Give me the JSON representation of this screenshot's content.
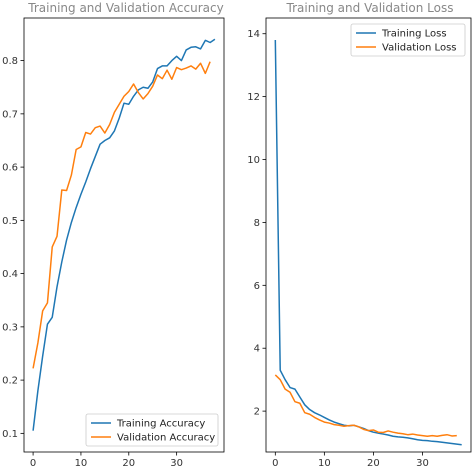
{
  "chart_data": [
    {
      "type": "line",
      "title": "Training and Validation Accuracy",
      "xlabel": "",
      "ylabel": "",
      "xlim": [
        -1.9,
        39.9
      ],
      "ylim": [
        0.065,
        0.88
      ],
      "xticks": [
        0,
        10,
        20,
        30
      ],
      "yticks": [
        0.1,
        0.2,
        0.3,
        0.4,
        0.5,
        0.6,
        0.7,
        0.8
      ],
      "grid": false,
      "legend_position": "lower-right",
      "series": [
        {
          "name": "Training Accuracy",
          "color": "#1f77b4",
          "values": [
            0.105,
            0.18,
            0.245,
            0.305,
            0.318,
            0.375,
            0.422,
            0.463,
            0.496,
            0.524,
            0.549,
            0.572,
            0.597,
            0.62,
            0.643,
            0.65,
            0.655,
            0.668,
            0.692,
            0.72,
            0.718,
            0.733,
            0.745,
            0.75,
            0.748,
            0.76,
            0.785,
            0.79,
            0.79,
            0.8,
            0.808,
            0.8,
            0.82,
            0.825,
            0.826,
            0.822,
            0.838,
            0.834,
            0.84
          ]
        },
        {
          "name": "Validation Accuracy",
          "color": "#ff7f0e",
          "values": [
            0.222,
            0.27,
            0.33,
            0.345,
            0.45,
            0.47,
            0.557,
            0.556,
            0.585,
            0.633,
            0.638,
            0.665,
            0.662,
            0.674,
            0.677,
            0.664,
            0.68,
            0.703,
            0.718,
            0.733,
            0.742,
            0.756,
            0.74,
            0.728,
            0.738,
            0.752,
            0.773,
            0.766,
            0.782,
            0.765,
            0.787,
            0.783,
            0.786,
            0.79,
            0.784,
            0.795,
            0.776,
            0.798
          ]
        }
      ]
    },
    {
      "type": "line",
      "title": "Training and Validation Loss",
      "xlabel": "",
      "ylabel": "",
      "xlim": [
        -1.9,
        39.9
      ],
      "ylim": [
        0.7,
        14.5
      ],
      "xticks": [
        0,
        10,
        20,
        30
      ],
      "yticks": [
        2,
        4,
        6,
        8,
        10,
        12,
        14
      ],
      "grid": false,
      "legend_position": "upper-right",
      "series": [
        {
          "name": "Training Loss",
          "color": "#1f77b4",
          "values": [
            13.8,
            3.3,
            3.0,
            2.75,
            2.7,
            2.45,
            2.2,
            2.05,
            1.95,
            1.88,
            1.8,
            1.72,
            1.65,
            1.6,
            1.55,
            1.53,
            1.55,
            1.5,
            1.45,
            1.38,
            1.33,
            1.3,
            1.27,
            1.24,
            1.2,
            1.18,
            1.17,
            1.15,
            1.12,
            1.09,
            1.07,
            1.06,
            1.04,
            1.03,
            1.01,
            0.99,
            0.97,
            0.95,
            0.93
          ]
        },
        {
          "name": "Validation Loss",
          "color": "#ff7f0e",
          "values": [
            3.15,
            3.0,
            2.7,
            2.6,
            2.3,
            2.25,
            1.95,
            1.9,
            1.8,
            1.72,
            1.65,
            1.62,
            1.57,
            1.55,
            1.52,
            1.54,
            1.55,
            1.5,
            1.42,
            1.38,
            1.4,
            1.33,
            1.32,
            1.37,
            1.33,
            1.3,
            1.28,
            1.25,
            1.27,
            1.24,
            1.22,
            1.2,
            1.22,
            1.2,
            1.23,
            1.25,
            1.21,
            1.22
          ]
        }
      ]
    }
  ]
}
